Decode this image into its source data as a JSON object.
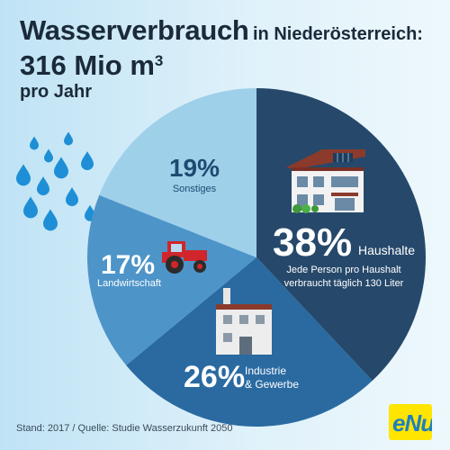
{
  "header": {
    "title_main": "Wasserverbrauch",
    "title_suffix": "in Niederösterreich:",
    "amount": "316 Mio m",
    "amount_exp": "3",
    "per": "pro Jahr"
  },
  "chart_data": {
    "type": "pie",
    "title": "Wasserverbrauch in Niederösterreich: 316 Mio m³ pro Jahr",
    "slices": [
      {
        "label": "Haushalte",
        "pct_text": "38%",
        "value": 38,
        "color": "#26496b",
        "note": "Jede Person pro Haushalt verbraucht täglich 130 Liter"
      },
      {
        "label": "Industrie & Gewerbe",
        "pct_text": "26%",
        "value": 26,
        "color": "#2a6aa1"
      },
      {
        "label": "Landwirtschaft",
        "pct_text": "17%",
        "value": 17,
        "color": "#4d94c9"
      },
      {
        "label": "Sonstiges",
        "pct_text": "19%",
        "value": 19,
        "color": "#9ed0ea"
      }
    ]
  },
  "labels": {
    "haushalte_note_1": "Jede Person pro Haushalt",
    "haushalte_note_2": "verbraucht täglich 130 Liter",
    "industrie_1": "Industrie",
    "industrie_2": "& Gewerbe"
  },
  "footer": {
    "source": "Stand: 2017 / Quelle: Studie Wasserzukunft 2050",
    "logo": "eNu"
  },
  "colors": {
    "drop": "#1e8fd6",
    "tractor": "#d0262b",
    "text_dark": "#1b2a3a"
  },
  "icons": [
    "water-drops-icon",
    "house-icon",
    "factory-icon",
    "tractor-icon"
  ]
}
